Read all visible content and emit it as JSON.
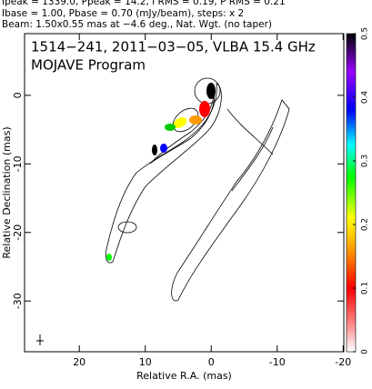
{
  "header": {
    "lines": [
      "Ipeak = 1339.0, Ppeak = 14.2, I RMS = 0.19, P RMS = 0.21",
      "Ibase = 1.00, Pbase = 0.70 (mJy/beam), steps: x 2",
      "Beam: 1.50x0.55 mas at −4.6 deg., Nat. Wgt. (no taper)"
    ]
  },
  "chart_data": {
    "type": "contour",
    "title": "1514−241, 2011−03−05, VLBA 15.4 GHz",
    "subtitle": "MOJAVE Program",
    "x_label": "Relative R.A. (mas)",
    "y_label": "Relative Declination (mas)",
    "xlim": [
      28.3,
      -20.1
    ],
    "ylim": [
      -37.4,
      9
    ],
    "xticks": [
      20,
      10,
      0,
      -10,
      -20
    ],
    "yticks": [
      0,
      -10,
      -20,
      -30
    ],
    "colorbar": {
      "lim": [
        0,
        0.5
      ],
      "ticks": [
        0,
        0.1,
        0.2,
        0.3,
        0.4,
        0.5
      ]
    }
  }
}
